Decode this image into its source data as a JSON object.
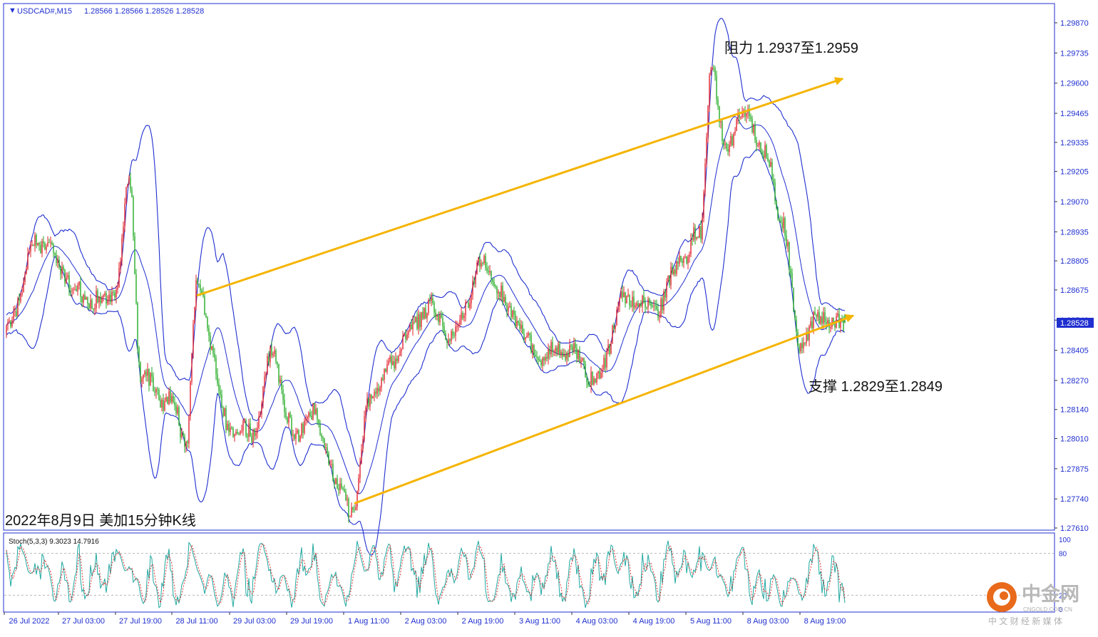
{
  "header": {
    "symbol": "USDCAD#,M15",
    "ohlc": "1.28566 1.28566 1.28526 1.28528"
  },
  "annotations": {
    "resistance": "阻力 1.2937至1.2959",
    "support": "支撑 1.2829至1.2849",
    "caption": "2022年8月9日 美加15分钟K线"
  },
  "stoch": {
    "label": "Stoch(5,3,3) 9.3023 14.7916",
    "levels": [
      100,
      80,
      20,
      0
    ],
    "level_labels": [
      "100",
      "80",
      "20",
      "0"
    ]
  },
  "price_axis": {
    "ticks": [
      "1.29870",
      "1.29735",
      "1.29600",
      "1.29465",
      "1.29335",
      "1.29205",
      "1.29070",
      "1.28935",
      "1.28805",
      "1.28675",
      "1.28540",
      "1.28405",
      "1.28270",
      "1.28140",
      "1.28010",
      "1.27875",
      "1.27740",
      "1.27610"
    ],
    "current_price": "1.28528"
  },
  "time_axis": {
    "labels": [
      "26 Jul 2022",
      "27 Jul 03:00",
      "27 Jul 19:00",
      "28 Jul 11:00",
      "29 Jul 03:00",
      "29 Jul 19:00",
      "1 Aug 11:00",
      "2 Aug 03:00",
      "2 Aug 19:00",
      "3 Aug 11:00",
      "4 Aug 03:00",
      "4 Aug 19:00",
      "5 Aug 11:00",
      "8 Aug 03:00",
      "8 Aug 19:00"
    ]
  },
  "brand": {
    "name": "中金网",
    "domain": "CNGOLD.COM.CN",
    "tagline": "中 文 财 经 新 媒 体"
  },
  "colors": {
    "bull_candle": "#e0202a",
    "bear_candle": "#22aa22",
    "bollinger": "#1f2fd0",
    "channel": "#f5b400",
    "stoch_main": "#20a8a0",
    "stoch_signal": "#e03030",
    "frame": "#1f2fd0",
    "price_label_bg": "#1f2fd0"
  },
  "chart_data": {
    "type": "candlestick",
    "symbol": "USDCAD#",
    "timeframe": "M15",
    "last_ohlc": {
      "open": 1.28566,
      "high": 1.28566,
      "low": 1.28526,
      "close": 1.28528
    },
    "ylim": [
      1.2761,
      1.2997
    ],
    "price_path": [
      {
        "x": "26 Jul 2022",
        "y": 1.2848
      },
      {
        "x": "26 Jul 12:00",
        "y": 1.2892
      },
      {
        "x": "27 Jul 03:00",
        "y": 1.2862
      },
      {
        "x": "27 Jul 12:00",
        "y": 1.2868
      },
      {
        "x": "27 Jul 16:00",
        "y": 1.2915
      },
      {
        "x": "27 Jul 19:00",
        "y": 1.2826
      },
      {
        "x": "28 Jul 04:00",
        "y": 1.282
      },
      {
        "x": "28 Jul 08:00",
        "y": 1.28
      },
      {
        "x": "28 Jul 11:00",
        "y": 1.2865
      },
      {
        "x": "28 Jul 20:00",
        "y": 1.281
      },
      {
        "x": "29 Jul 03:00",
        "y": 1.2802
      },
      {
        "x": "29 Jul 08:00",
        "y": 1.2838
      },
      {
        "x": "29 Jul 14:00",
        "y": 1.2806
      },
      {
        "x": "29 Jul 19:00",
        "y": 1.281
      },
      {
        "x": "1 Aug 03:00",
        "y": 1.2778
      },
      {
        "x": "1 Aug 07:00",
        "y": 1.2772
      },
      {
        "x": "1 Aug 11:00",
        "y": 1.2818
      },
      {
        "x": "2 Aug 03:00",
        "y": 1.286
      },
      {
        "x": "2 Aug 10:00",
        "y": 1.2845
      },
      {
        "x": "2 Aug 19:00",
        "y": 1.2882
      },
      {
        "x": "3 Aug 03:00",
        "y": 1.2855
      },
      {
        "x": "3 Aug 11:00",
        "y": 1.284
      },
      {
        "x": "3 Aug 19:00",
        "y": 1.2838
      },
      {
        "x": "4 Aug 03:00",
        "y": 1.283
      },
      {
        "x": "4 Aug 10:00",
        "y": 1.286
      },
      {
        "x": "4 Aug 19:00",
        "y": 1.2862
      },
      {
        "x": "5 Aug 03:00",
        "y": 1.288
      },
      {
        "x": "5 Aug 08:00",
        "y": 1.289
      },
      {
        "x": "5 Aug 11:00",
        "y": 1.2968
      },
      {
        "x": "5 Aug 15:00",
        "y": 1.2935
      },
      {
        "x": "5 Aug 20:00",
        "y": 1.2945
      },
      {
        "x": "8 Aug 03:00",
        "y": 1.2925
      },
      {
        "x": "8 Aug 07:00",
        "y": 1.29
      },
      {
        "x": "8 Aug 12:00",
        "y": 1.2842
      },
      {
        "x": "8 Aug 19:00",
        "y": 1.2855
      },
      {
        "x": "9 Aug 01:00",
        "y": 1.2853
      }
    ],
    "channel": {
      "upper": [
        {
          "x": "28 Jul 11:00",
          "y": 1.2865
        },
        {
          "x": "9 Aug 00:00",
          "y": 1.2962
        }
      ],
      "lower": [
        {
          "x": "1 Aug 07:00",
          "y": 1.2772
        },
        {
          "x": "9 Aug 03:00",
          "y": 1.2856
        }
      ]
    },
    "resistance_zone": [
      1.2937,
      1.2959
    ],
    "support_zone": [
      1.2829,
      1.2849
    ],
    "indicators": [
      "Bollinger Bands",
      "Stochastic(5,3,3)"
    ],
    "stochastic": {
      "main": 9.3023,
      "signal": 14.7916,
      "levels": [
        80,
        20
      ]
    }
  }
}
